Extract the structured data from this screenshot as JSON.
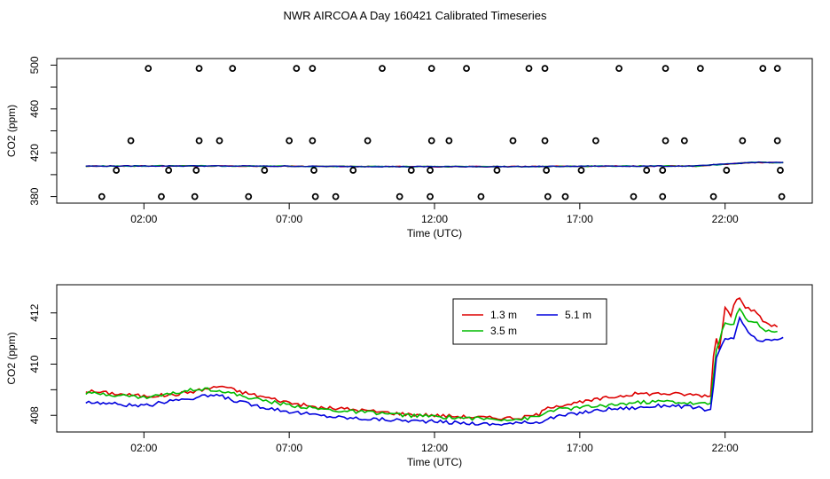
{
  "title": "NWR AIRCOA A  Day 160421  Calibrated Timeseries",
  "colors": {
    "red": "#dd0000",
    "green": "#00bb00",
    "blue": "#0000dd",
    "navy": "#0000aa",
    "teal": "#008888",
    "magenta": "#aa0088",
    "black": "#000000"
  },
  "chart_data": [
    {
      "type": "scatter",
      "xlabel": "Time (UTC)",
      "ylabel": "CO2 (ppm)",
      "xlim": [
        -1.0,
        25.0
      ],
      "ylim": [
        374,
        506
      ],
      "xtick_values": [
        2,
        7,
        12,
        17,
        22
      ],
      "xtick_labels": [
        "02:00",
        "07:00",
        "12:00",
        "17:00",
        "22:00"
      ],
      "ytick_values": [
        380,
        420,
        460,
        500
      ],
      "ytick_labels": [
        "380",
        "420",
        "460",
        "500"
      ],
      "ytick_minor": [
        400,
        440,
        480
      ],
      "points_high": [
        [
          2.15,
          497
        ],
        [
          3.9,
          497
        ],
        [
          5.05,
          497
        ],
        [
          7.25,
          497
        ],
        [
          7.8,
          497
        ],
        [
          10.2,
          497
        ],
        [
          11.9,
          497
        ],
        [
          13.1,
          497
        ],
        [
          15.25,
          497
        ],
        [
          15.8,
          497
        ],
        [
          18.35,
          497
        ],
        [
          19.95,
          497
        ],
        [
          21.15,
          497
        ],
        [
          23.3,
          497
        ],
        [
          23.8,
          497
        ]
      ],
      "points_mid": [
        [
          1.55,
          431
        ],
        [
          3.9,
          431
        ],
        [
          4.6,
          431
        ],
        [
          7.0,
          431
        ],
        [
          7.8,
          431
        ],
        [
          9.7,
          431
        ],
        [
          11.9,
          431
        ],
        [
          12.5,
          431
        ],
        [
          14.7,
          431
        ],
        [
          15.8,
          431
        ],
        [
          17.55,
          431
        ],
        [
          19.95,
          431
        ],
        [
          20.6,
          431
        ],
        [
          22.6,
          431
        ],
        [
          23.8,
          431
        ]
      ],
      "points_ref": [
        [
          1.05,
          404
        ],
        [
          2.85,
          404
        ],
        [
          3.8,
          404
        ],
        [
          6.15,
          404
        ],
        [
          7.85,
          404
        ],
        [
          9.2,
          404
        ],
        [
          11.2,
          404
        ],
        [
          11.85,
          404
        ],
        [
          14.15,
          404
        ],
        [
          15.85,
          404
        ],
        [
          17.05,
          404
        ],
        [
          19.3,
          404
        ],
        [
          19.85,
          404
        ],
        [
          22.05,
          404
        ],
        [
          23.9,
          404
        ]
      ],
      "points_low": [
        [
          0.55,
          380
        ],
        [
          2.6,
          380
        ],
        [
          3.75,
          380
        ],
        [
          5.6,
          380
        ],
        [
          7.9,
          380
        ],
        [
          8.6,
          380
        ],
        [
          10.8,
          380
        ],
        [
          11.85,
          380
        ],
        [
          13.6,
          380
        ],
        [
          15.9,
          380
        ],
        [
          16.5,
          380
        ],
        [
          18.85,
          380
        ],
        [
          19.85,
          380
        ],
        [
          21.6,
          380
        ],
        [
          23.95,
          380
        ]
      ],
      "baseline_series": [
        [
          0,
          407.8
        ],
        [
          3,
          408.0
        ],
        [
          6,
          407.8
        ],
        [
          9,
          407.5
        ],
        [
          12,
          407.3
        ],
        [
          15,
          407.4
        ],
        [
          18,
          407.8
        ],
        [
          21,
          407.9
        ],
        [
          22,
          409.6
        ],
        [
          23,
          411.2
        ],
        [
          24,
          411.0
        ]
      ]
    },
    {
      "type": "line",
      "xlabel": "Time (UTC)",
      "ylabel": "CO2 (ppm)",
      "xlim": [
        -1.0,
        25.0
      ],
      "ylim": [
        407.35,
        413.1
      ],
      "xtick_values": [
        2,
        7,
        12,
        17,
        22
      ],
      "xtick_labels": [
        "02:00",
        "07:00",
        "12:00",
        "17:00",
        "22:00"
      ],
      "ytick_values": [
        408,
        410,
        412
      ],
      "ytick_labels": [
        "408",
        "410",
        "412"
      ],
      "ytick_minor": [
        409,
        411
      ],
      "legend": {
        "position": "top-right",
        "entries": [
          "1.3 m",
          "3.5 m",
          "5.1 m"
        ]
      },
      "series": [
        {
          "name": "1.3 m",
          "color": "#dd0000",
          "values": [
            [
              0,
              408.95
            ],
            [
              0.5,
              408.9
            ],
            [
              1,
              408.85
            ],
            [
              2,
              408.75
            ],
            [
              3,
              408.8
            ],
            [
              4,
              409.0
            ],
            [
              4.7,
              409.15
            ],
            [
              5.2,
              408.95
            ],
            [
              6,
              408.75
            ],
            [
              7,
              408.5
            ],
            [
              8,
              408.3
            ],
            [
              9,
              408.25
            ],
            [
              10,
              408.15
            ],
            [
              11,
              408.05
            ],
            [
              12,
              408.0
            ],
            [
              13,
              407.95
            ],
            [
              14,
              407.9
            ],
            [
              15,
              407.9
            ],
            [
              15.6,
              408.05
            ],
            [
              16,
              408.35
            ],
            [
              17,
              408.5
            ],
            [
              18,
              408.7
            ],
            [
              19,
              408.85
            ],
            [
              20,
              408.85
            ],
            [
              21,
              408.8
            ],
            [
              21.5,
              408.75
            ],
            [
              21.65,
              411.2
            ],
            [
              21.8,
              410.6
            ],
            [
              22.0,
              412.2
            ],
            [
              22.2,
              411.9
            ],
            [
              22.45,
              412.75
            ],
            [
              22.7,
              412.25
            ],
            [
              23.0,
              412.05
            ],
            [
              23.4,
              411.6
            ],
            [
              23.8,
              411.45
            ]
          ]
        },
        {
          "name": "3.5 m",
          "color": "#00bb00",
          "values": [
            [
              0,
              408.85
            ],
            [
              0.5,
              408.85
            ],
            [
              1,
              408.8
            ],
            [
              2,
              408.7
            ],
            [
              3,
              408.85
            ],
            [
              3.8,
              409.05
            ],
            [
              4.5,
              409.0
            ],
            [
              5.2,
              408.8
            ],
            [
              6,
              408.6
            ],
            [
              7,
              408.4
            ],
            [
              8,
              408.25
            ],
            [
              9,
              408.15
            ],
            [
              10,
              408.1
            ],
            [
              11,
              408.0
            ],
            [
              12,
              407.95
            ],
            [
              13,
              407.9
            ],
            [
              14,
              407.85
            ],
            [
              15,
              407.85
            ],
            [
              15.6,
              407.95
            ],
            [
              16,
              408.2
            ],
            [
              17,
              408.3
            ],
            [
              18,
              408.4
            ],
            [
              19,
              408.5
            ],
            [
              20,
              408.55
            ],
            [
              21,
              408.45
            ],
            [
              21.5,
              408.45
            ],
            [
              21.7,
              410.6
            ],
            [
              22.0,
              411.6
            ],
            [
              22.3,
              411.5
            ],
            [
              22.45,
              412.2
            ],
            [
              22.75,
              411.75
            ],
            [
              23.1,
              411.6
            ],
            [
              23.4,
              411.3
            ],
            [
              23.8,
              411.3
            ]
          ]
        },
        {
          "name": "5.1 m",
          "color": "#0000dd",
          "values": [
            [
              0,
              408.5
            ],
            [
              0.5,
              408.5
            ],
            [
              1,
              408.45
            ],
            [
              2,
              408.35
            ],
            [
              3,
              408.6
            ],
            [
              3.8,
              408.7
            ],
            [
              4.5,
              408.8
            ],
            [
              5.2,
              408.55
            ],
            [
              6,
              408.35
            ],
            [
              7,
              408.15
            ],
            [
              8,
              408.0
            ],
            [
              9,
              407.9
            ],
            [
              10,
              407.85
            ],
            [
              11,
              407.8
            ],
            [
              12,
              407.75
            ],
            [
              13,
              407.7
            ],
            [
              14,
              407.65
            ],
            [
              15,
              407.7
            ],
            [
              15.6,
              407.75
            ],
            [
              16,
              407.9
            ],
            [
              17,
              408.1
            ],
            [
              18,
              408.25
            ],
            [
              19,
              408.3
            ],
            [
              20,
              408.4
            ],
            [
              21,
              408.3
            ],
            [
              21.5,
              408.2
            ],
            [
              21.7,
              410.2
            ],
            [
              22.0,
              411.0
            ],
            [
              22.3,
              410.95
            ],
            [
              22.5,
              411.8
            ],
            [
              22.8,
              411.25
            ],
            [
              23.1,
              410.9
            ],
            [
              23.5,
              410.9
            ],
            [
              23.8,
              411.0
            ],
            [
              24.05,
              411.0
            ]
          ]
        }
      ]
    }
  ]
}
